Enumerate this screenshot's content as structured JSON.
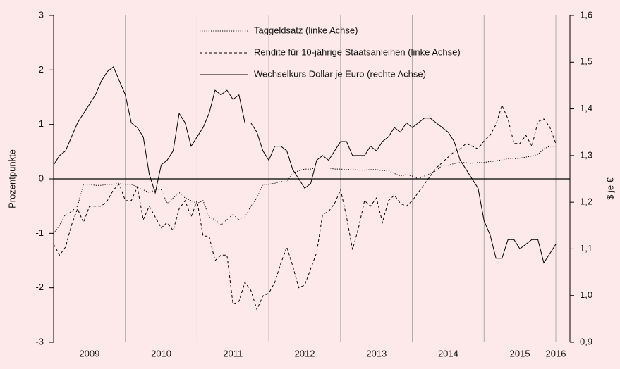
{
  "chart_data": {
    "type": "line",
    "ylabel": "Prozentpunkte",
    "y2label": "$ je €",
    "categories": [
      null,
      null,
      null,
      null,
      null,
      null,
      "2009",
      null,
      null,
      null,
      null,
      null,
      null,
      null,
      null,
      null,
      null,
      null,
      "2010",
      null,
      null,
      null,
      null,
      null,
      null,
      null,
      null,
      null,
      null,
      null,
      "2011",
      null,
      null,
      null,
      null,
      null,
      null,
      null,
      null,
      null,
      null,
      null,
      "2012",
      null,
      null,
      null,
      null,
      null,
      null,
      null,
      null,
      null,
      null,
      null,
      "2013",
      null,
      null,
      null,
      null,
      null,
      null,
      null,
      null,
      null,
      null,
      null,
      "2014",
      null,
      null,
      null,
      null,
      null,
      null,
      null,
      null,
      null,
      null,
      null,
      "2015",
      null,
      null,
      null,
      null,
      null,
      "2016"
    ],
    "ylim": [
      -3,
      3
    ],
    "yticks": [
      -3,
      -2,
      -1,
      0,
      1,
      2,
      3
    ],
    "y2lim": [
      0.9,
      1.6
    ],
    "y2ticks": [
      {
        "value": 0.9,
        "label": "0,9"
      },
      {
        "value": 1.0,
        "label": "1,0"
      },
      {
        "value": 1.1,
        "label": "1,1"
      },
      {
        "value": 1.2,
        "label": "1,2"
      },
      {
        "value": 1.3,
        "label": "1,3"
      },
      {
        "value": 1.4,
        "label": "1,4"
      },
      {
        "value": 1.5,
        "label": "1,5"
      },
      {
        "value": 1.6,
        "label": "1,6"
      }
    ],
    "series": [
      {
        "name": "Taggeldsatz (linke Achse)",
        "color": "#000000",
        "style": "dotted",
        "values": [
          -1.0,
          -0.85,
          -0.65,
          -0.6,
          -0.5,
          -0.1,
          -0.1,
          -0.12,
          -0.12,
          -0.1,
          -0.1,
          -0.08,
          -0.1,
          -0.1,
          -0.15,
          -0.2,
          -0.25,
          -0.2,
          -0.2,
          -0.45,
          -0.35,
          -0.25,
          -0.35,
          -0.4,
          -0.45,
          -0.4,
          -0.7,
          -0.75,
          -0.85,
          -0.75,
          -0.65,
          -0.75,
          -0.7,
          -0.5,
          -0.35,
          -0.1,
          -0.1,
          -0.08,
          -0.05,
          -0.05,
          0.1,
          0.15,
          0.18,
          0.18,
          0.2,
          0.2,
          0.2,
          0.18,
          0.18,
          0.17,
          0.18,
          0.16,
          0.16,
          0.17,
          0.17,
          0.15,
          0.15,
          0.1,
          0.05,
          0.08,
          0.05,
          0.0,
          0.05,
          0.1,
          0.15,
          0.25,
          0.25,
          0.28,
          0.3,
          0.3,
          0.28,
          0.3,
          0.3,
          0.32,
          0.33,
          0.35,
          0.37,
          0.37,
          0.38,
          0.4,
          0.42,
          0.45,
          0.55,
          0.6,
          0.6
        ]
      },
      {
        "name": "Rendite für 10-jährige Staatsanleihen (linke Achse)",
        "color": "#000000",
        "style": "dashed",
        "values": [
          -1.2,
          -1.4,
          -1.25,
          -0.85,
          -0.55,
          -0.8,
          -0.5,
          -0.5,
          -0.5,
          -0.4,
          -0.2,
          -0.1,
          -0.4,
          -0.4,
          -0.15,
          -0.75,
          -0.5,
          -0.7,
          -0.9,
          -0.8,
          -0.95,
          -0.55,
          -0.4,
          -0.7,
          -0.4,
          -1.05,
          -1.05,
          -1.5,
          -1.4,
          -1.4,
          -2.3,
          -2.25,
          -1.9,
          -2.05,
          -2.4,
          -2.15,
          -2.1,
          -1.9,
          -1.55,
          -1.25,
          -1.6,
          -2.0,
          -1.95,
          -1.65,
          -1.35,
          -0.65,
          -0.6,
          -0.45,
          -0.2,
          -0.7,
          -1.3,
          -0.9,
          -0.4,
          -0.5,
          -0.35,
          -0.8,
          -0.4,
          -0.3,
          -0.45,
          -0.5,
          -0.4,
          -0.25,
          -0.1,
          0.05,
          0.2,
          0.3,
          0.4,
          0.5,
          0.55,
          0.65,
          0.6,
          0.55,
          0.7,
          0.8,
          1.0,
          1.35,
          1.1,
          0.65,
          0.65,
          0.8,
          0.6,
          1.05,
          1.1,
          0.95,
          0.65
        ]
      },
      {
        "name": "Wechselkurs Dollar je Euro (rechte Achse)",
        "color": "#000000",
        "style": "solid",
        "axis": "y2",
        "values": [
          1.28,
          1.3,
          1.31,
          1.34,
          1.37,
          1.39,
          1.41,
          1.43,
          1.46,
          1.48,
          1.49,
          1.46,
          1.43,
          1.37,
          1.36,
          1.34,
          1.26,
          1.22,
          1.28,
          1.29,
          1.31,
          1.39,
          1.37,
          1.32,
          1.34,
          1.36,
          1.39,
          1.44,
          1.43,
          1.44,
          1.42,
          1.43,
          1.37,
          1.37,
          1.35,
          1.31,
          1.29,
          1.32,
          1.32,
          1.31,
          1.27,
          1.25,
          1.23,
          1.24,
          1.29,
          1.3,
          1.29,
          1.31,
          1.33,
          1.33,
          1.3,
          1.3,
          1.3,
          1.32,
          1.31,
          1.33,
          1.34,
          1.36,
          1.35,
          1.37,
          1.36,
          1.37,
          1.38,
          1.38,
          1.37,
          1.36,
          1.35,
          1.33,
          1.29,
          1.27,
          1.25,
          1.23,
          1.16,
          1.13,
          1.08,
          1.08,
          1.12,
          1.12,
          1.1,
          1.11,
          1.12,
          1.12,
          1.07,
          1.09,
          1.11
        ]
      }
    ]
  }
}
